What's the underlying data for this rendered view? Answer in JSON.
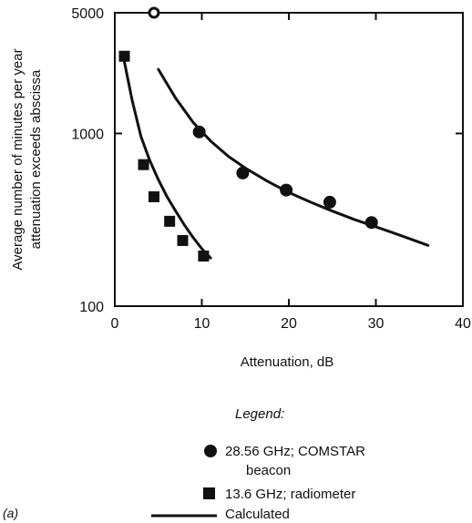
{
  "chart_data": {
    "type": "scatter",
    "title": "",
    "panel_label": "(a)",
    "xlabel": "Attenuation, dB",
    "ylabel_lines": [
      "Average number of minutes per year",
      "attenuation exceeds abscissa"
    ],
    "xlim": [
      0,
      40
    ],
    "ylim": [
      100,
      5000
    ],
    "y_scale": "log",
    "x_ticks": [
      0,
      10,
      20,
      30,
      40
    ],
    "y_ticks": [
      100,
      1000,
      5000
    ],
    "grid": false,
    "legend": {
      "title": "Legend:",
      "items": [
        {
          "marker": "circle",
          "label_lines": [
            "28.56 GHz; COMSTAR",
            "beacon"
          ]
        },
        {
          "marker": "square",
          "label_lines": [
            "13.6 GHz; radiometer"
          ]
        },
        {
          "marker": "line",
          "label_lines": [
            "Calculated"
          ]
        }
      ]
    },
    "series": [
      {
        "name": "28.56 GHz; COMSTAR beacon",
        "kind": "points",
        "marker": "circle",
        "x": [
          4.5,
          9.7,
          14.7,
          19.7,
          24.7,
          29.5
        ],
        "y": [
          5000,
          1020,
          590,
          470,
          400,
          305
        ]
      },
      {
        "name": "13.6 GHz; radiometer",
        "kind": "points",
        "marker": "square",
        "x": [
          1.1,
          3.3,
          4.5,
          6.3,
          7.8,
          10.2
        ],
        "y": [
          2800,
          660,
          430,
          310,
          240,
          195
        ]
      },
      {
        "name": "Calculated",
        "kind": "line",
        "x": [
          5.0,
          7.0,
          9.0,
          11.0,
          13.0,
          15.0,
          17.5,
          20.0,
          22.5,
          25.0,
          27.5,
          30.0,
          33.0,
          36.0
        ],
        "y": [
          2350,
          1600,
          1160,
          905,
          740,
          630,
          530,
          455,
          400,
          355,
          318,
          288,
          255,
          225
        ]
      },
      {
        "name": "Calculated",
        "kind": "line",
        "x": [
          1.1,
          2.0,
          3.0,
          4.0,
          5.0,
          6.0,
          7.0,
          8.0,
          9.0,
          10.0,
          11.0
        ],
        "y": [
          2600,
          1550,
          960,
          700,
          540,
          430,
          355,
          295,
          250,
          215,
          190
        ]
      }
    ]
  }
}
